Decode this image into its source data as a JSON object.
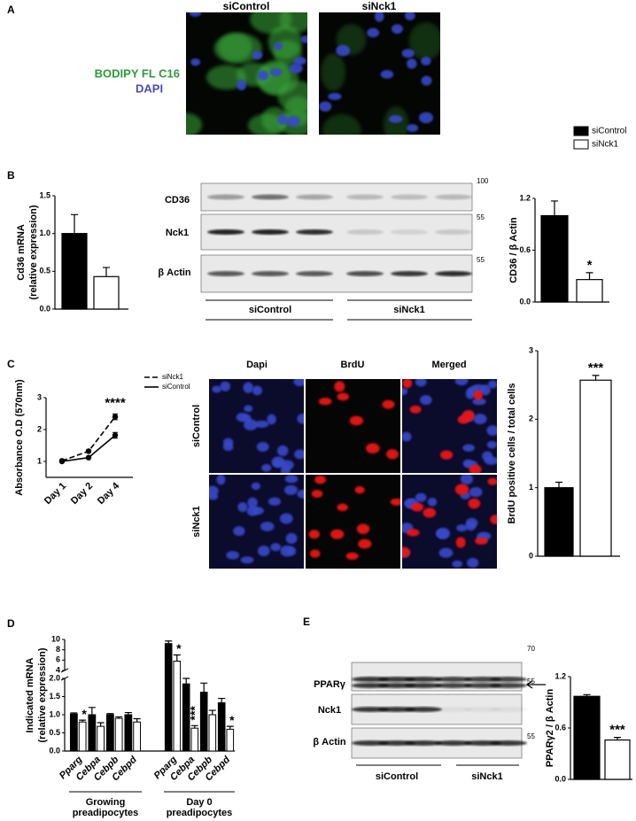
{
  "panel_labels": [
    "A",
    "B",
    "C",
    "D",
    "E"
  ],
  "panel_a": {
    "columns": [
      "siControl",
      "siNck1"
    ],
    "stains": [
      "BODIPY FL C16",
      "DAPI"
    ]
  },
  "panel_b_blot": {
    "rows": [
      "CD36",
      "Nck1",
      "β Actin"
    ],
    "markers": [
      "100",
      "55",
      "55"
    ],
    "groups": [
      "siControl",
      "siNck1"
    ]
  },
  "panel_c_images": {
    "columns": [
      "Dapi",
      "BrdU",
      "Merged"
    ],
    "rows": [
      "siControl",
      "siNck1"
    ]
  },
  "panel_e_blot": {
    "rows": [
      "PPARγ",
      "Nck1",
      "β Actin"
    ],
    "markers": [
      "70",
      "55",
      "55"
    ],
    "groups": [
      "siControl",
      "siNck1"
    ]
  },
  "chart_data": [
    {
      "type": "bar",
      "ylabel": [
        "Cd36 mRNA",
        "(relative expression)"
      ],
      "values": [
        1.0,
        0.43
      ],
      "errors": [
        0.25,
        0.12
      ],
      "colors": [
        "#000000",
        "#ffffff"
      ],
      "ylim": [
        0,
        1.5
      ],
      "yticks": [
        {
          "value": 0,
          "label": "0.0"
        },
        0.5,
        {
          "value": 1,
          "label": "1.0"
        },
        1.5
      ]
    },
    {
      "type": "bar",
      "ylabel": [
        "CD36 / β Actin"
      ],
      "values": [
        1.0,
        0.26
      ],
      "errors": [
        0.17,
        0.08
      ],
      "colors": [
        "#000000",
        "#ffffff"
      ],
      "significance": [
        null,
        "*"
      ],
      "ylim": [
        0,
        1.2
      ],
      "yticks": [
        {
          "value": 0,
          "label": "0.0"
        },
        0.6,
        1.2
      ]
    },
    {
      "type": "line",
      "ylabel": [
        "Absorbance O.D (570nm)"
      ],
      "categories": [
        "Day 1",
        "Day 2",
        "Day 4"
      ],
      "series": [
        {
          "name": "siNck1",
          "color": "#000000",
          "line_style": "dashed",
          "values": [
            1.02,
            1.32,
            2.4
          ],
          "errors": [
            0.03,
            0.04,
            0.09
          ]
        },
        {
          "name": "siControl",
          "color": "#000000",
          "line_style": "solid",
          "values": [
            1.0,
            1.12,
            1.82
          ],
          "errors": [
            0.02,
            0.02,
            0.09
          ]
        }
      ],
      "significance": [
        null,
        null,
        "****"
      ],
      "ylim": [
        0.5,
        3
      ],
      "yticks": [
        1,
        2,
        3
      ]
    },
    {
      "type": "bar",
      "ylabel": [
        "BrdU positive cells / total cells"
      ],
      "values": [
        1.0,
        2.57
      ],
      "errors": [
        0.08,
        0.07
      ],
      "colors": [
        "#000000",
        "#ffffff"
      ],
      "significance": [
        null,
        "***"
      ],
      "ylim": [
        0,
        3
      ],
      "yticks": [
        0,
        1,
        2,
        3
      ]
    },
    {
      "type": "bar",
      "ylabel": [
        "Indicated mRNA",
        "(relative expression)"
      ],
      "categories": [
        "Pparg",
        "Cebpa",
        "Cebpb",
        "Cebpd",
        "Pparg",
        "Cebpa",
        "Cebpb",
        "Cebpd"
      ],
      "groups": [
        [
          "Growing",
          "preadipocytes"
        ],
        [
          "Day 0",
          "preadipocytes"
        ]
      ],
      "series": [
        {
          "name": "siControl",
          "color": "#000000",
          "values": [
            1.02,
            1.0,
            1.0,
            1.0,
            9.2,
            1.85,
            1.62,
            1.33
          ],
          "errors": [
            0.03,
            0.2,
            0.03,
            0.06,
            0.5,
            0.15,
            0.25,
            0.12
          ]
        },
        {
          "name": "siNck1",
          "color": "#ffffff",
          "values": [
            0.8,
            0.68,
            0.9,
            0.8,
            5.8,
            0.63,
            1.0,
            0.6
          ],
          "errors": [
            0.05,
            0.1,
            0.04,
            0.09,
            1.2,
            0.07,
            0.12,
            0.08
          ]
        }
      ],
      "significance": [
        "*",
        null,
        null,
        null,
        "*",
        "***",
        null,
        "*"
      ],
      "ylim": [
        0,
        10
      ],
      "axis_break": [
        2,
        4
      ],
      "yticks": [
        {
          "value": 0,
          "label": "0.0"
        },
        0.5,
        {
          "value": 1,
          "label": "1.0"
        },
        1.5,
        {
          "value": 2,
          "label": "2.0"
        },
        4,
        6,
        8,
        10
      ]
    },
    {
      "type": "bar",
      "ylabel": [
        "PPARγ2 / β Actin"
      ],
      "values": [
        0.97,
        0.46
      ],
      "errors": [
        0.02,
        0.03
      ],
      "colors": [
        "#000000",
        "#ffffff"
      ],
      "significance": [
        null,
        "***"
      ],
      "ylim": [
        0,
        1.2
      ],
      "yticks": [
        {
          "value": 0,
          "label": "0.0"
        },
        0.6,
        1.2
      ]
    }
  ]
}
